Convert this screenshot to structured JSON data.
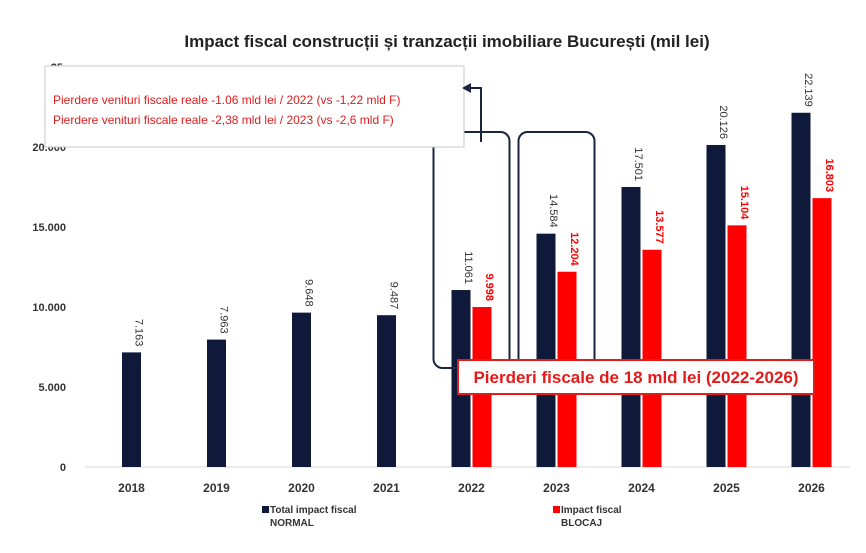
{
  "chart_data": {
    "type": "bar",
    "title": "Impact fiscal construcții și tranzacții imobiliare București (mil lei)",
    "categories": [
      "2018",
      "2019",
      "2020",
      "2021",
      "2022",
      "2023",
      "2024",
      "2025",
      "2026"
    ],
    "series": [
      {
        "name": "Total impact fiscal NORMAL",
        "color": "#0f1a3a",
        "values": [
          7163,
          7963,
          9648,
          9487,
          11061,
          14584,
          17501,
          20126,
          22139
        ],
        "labels": [
          "7.163",
          "7.963",
          "9.648",
          "9.487",
          "11.061",
          "14.584",
          "17.501",
          "20.126",
          "22.139"
        ]
      },
      {
        "name": "Impact fiscal BLOCAJ",
        "color": "#ff0000",
        "values": [
          null,
          null,
          null,
          null,
          9998,
          12204,
          13577,
          15104,
          16803
        ],
        "labels": [
          "",
          "",
          "",
          "",
          "9.998",
          "12.204",
          "13.577",
          "15.104",
          "16.803"
        ]
      }
    ],
    "ylim": [
      0,
      25000
    ],
    "yticks": [
      "0",
      "5.000",
      "10.000",
      "15.000",
      "20.000",
      "25."
    ],
    "legend": [
      {
        "line1": "Total impact fiscal",
        "line2": "NORMAL",
        "color": "#0f1a3a"
      },
      {
        "line1": "Impact fiscal",
        "line2": "BLOCAJ",
        "color": "#ff0000"
      }
    ],
    "legend_position": "bottom",
    "annotations": {
      "note_lines": [
        "Pierdere venituri fiscale reale -1.06 mld lei / 2022 (vs -1,22 mld F)",
        "Pierdere venituri fiscale reale -2,38 mld lei / 2023 (vs -2,6 mld F)"
      ],
      "highlighted_years": [
        "2022",
        "2023"
      ],
      "callout": "Pierderi fiscale de 18 mld lei (2022-2026)"
    }
  }
}
